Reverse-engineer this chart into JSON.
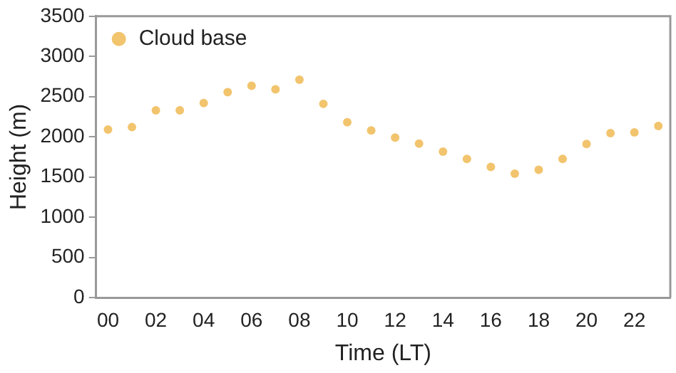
{
  "chart_data": {
    "type": "scatter",
    "xlabel": "Time (LT)",
    "ylabel": "Height (m)",
    "categories": [
      "00",
      null,
      "02",
      null,
      "04",
      null,
      "06",
      null,
      "08",
      null,
      "10",
      null,
      "12",
      null,
      "14",
      null,
      "16",
      null,
      "18",
      null,
      "20",
      null,
      "22",
      null
    ],
    "series": [
      {
        "name": "Cloud base",
        "color": "#f2c46d",
        "values": [
          2090,
          2120,
          2330,
          2330,
          2420,
          2555,
          2635,
          2590,
          2710,
          2410,
          2180,
          2080,
          1990,
          1915,
          1815,
          1725,
          1625,
          1540,
          1590,
          1725,
          1910,
          2045,
          2055,
          2135
        ]
      }
    ],
    "ylim": [
      0,
      3500
    ],
    "yticks": [
      0,
      500,
      1000,
      1500,
      2000,
      2500,
      3000,
      3500
    ],
    "grid": false,
    "legend": "top left",
    "marker": "circle"
  }
}
